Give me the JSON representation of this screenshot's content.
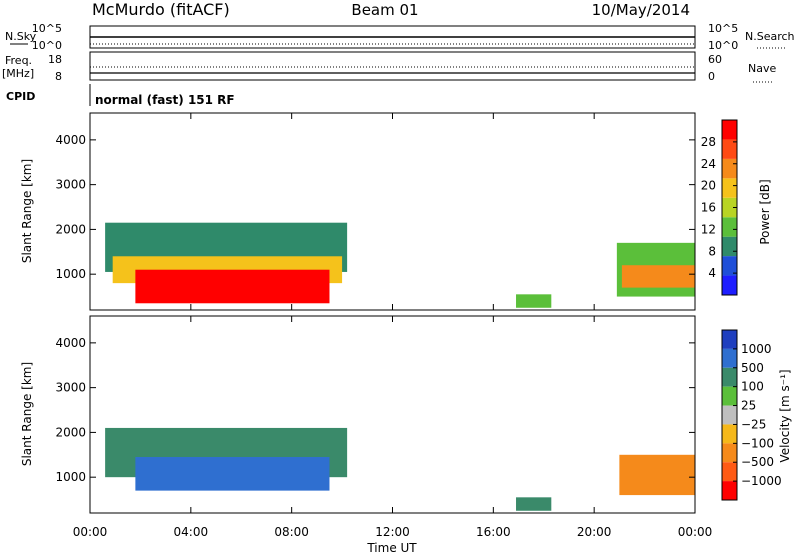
{
  "header": {
    "station": "McMurdo (fitACF)",
    "beam": "Beam 01",
    "date": "10/May/2014"
  },
  "top_panel": {
    "left_label": "N.Sky",
    "left_ticks": [
      "10^5",
      "10^0"
    ],
    "right_label": "N.Search",
    "right_ticks": [
      "10^5",
      "10^0"
    ]
  },
  "freq_panel": {
    "left_label_1": "Freq.",
    "left_label_2": "[MHz]",
    "left_ticks": [
      "18",
      "8"
    ],
    "right_label": "Nave",
    "right_ticks": [
      "60",
      "0"
    ]
  },
  "cpid_panel": {
    "label": "CPID",
    "text": "normal (fast) 151 RF"
  },
  "chart_data": [
    {
      "type": "heatmap",
      "title": "",
      "ylabel": "Slant Range [km]",
      "ylim": [
        200,
        4600
      ],
      "yticks": [
        1000,
        2000,
        3000,
        4000
      ],
      "xlim_hours": [
        0,
        24
      ],
      "colorbar": {
        "label": "Power [dB]",
        "range": [
          0,
          32
        ],
        "ticks": [
          "4",
          "8",
          "12",
          "16",
          "20",
          "24",
          "28"
        ],
        "colors": [
          "#1e1eff",
          "#1f4fd8",
          "#2f8a6a",
          "#5bbf3a",
          "#b8d424",
          "#f5c21b",
          "#f58a1b",
          "#ff4a14",
          "#ff0000"
        ]
      },
      "regions": [
        {
          "t0": 0.6,
          "t1": 10.2,
          "r0": 1050,
          "r1": 2150,
          "value": 10
        },
        {
          "t0": 0.9,
          "t1": 10.0,
          "r0": 800,
          "r1": 1400,
          "value": 20
        },
        {
          "t0": 1.8,
          "t1": 9.5,
          "r0": 350,
          "r1": 1100,
          "value": 30
        },
        {
          "t0": 16.9,
          "t1": 18.3,
          "r0": 250,
          "r1": 550,
          "value": 14
        },
        {
          "t0": 20.9,
          "t1": 24.0,
          "r0": 500,
          "r1": 1700,
          "value": 12
        },
        {
          "t0": 21.1,
          "t1": 24.0,
          "r0": 700,
          "r1": 1200,
          "value": 22
        }
      ]
    },
    {
      "type": "heatmap",
      "title": "",
      "ylabel": "Slant Range [km]",
      "xlabel": "Time UT",
      "ylim": [
        200,
        4600
      ],
      "yticks": [
        1000,
        2000,
        3000,
        4000
      ],
      "xlim_hours": [
        0,
        24
      ],
      "xticks": [
        "00:00",
        "04:00",
        "08:00",
        "12:00",
        "16:00",
        "20:00",
        "00:00"
      ],
      "colorbar": {
        "label": "Velocity [m s⁻¹]",
        "ticks": [
          "1000",
          "500",
          "100",
          "25",
          "−25",
          "−100",
          "−500",
          "−1000"
        ],
        "colors": [
          "#1f3fbf",
          "#2f6fd0",
          "#3a8a6a",
          "#5bbf3a",
          "#bfbfbf",
          "#f5b81b",
          "#f58a1b",
          "#ff5a14",
          "#ff0000"
        ]
      },
      "regions": [
        {
          "t0": 0.6,
          "t1": 10.2,
          "r0": 1000,
          "r1": 2100,
          "value": 100
        },
        {
          "t0": 1.8,
          "t1": 9.5,
          "r0": 700,
          "r1": 1450,
          "value": 700
        },
        {
          "t0": 16.9,
          "t1": 18.3,
          "r0": 250,
          "r1": 550,
          "value": 100
        },
        {
          "t0": 21.0,
          "t1": 24.0,
          "r0": 600,
          "r1": 1500,
          "value": -200
        }
      ]
    }
  ]
}
